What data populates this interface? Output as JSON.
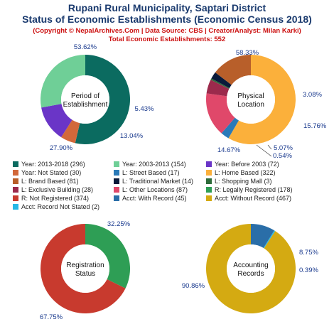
{
  "header": {
    "title1": "Rupani Rural Municipality, Saptari District",
    "title2": "Status of Economic Establishments (Economic Census 2018)",
    "credit": "(Copyright © NepalArchives.Com | Data Source: CBS | Creator/Analyst: Milan Karki)",
    "total": "Total Economic Establishments: 552"
  },
  "chart_data": [
    {
      "type": "pie",
      "center_label": [
        "Period of",
        "Establishment"
      ],
      "slices": [
        {
          "label": "Year: 2013-2018",
          "value": 296,
          "color": "#0b6b60",
          "pct_label": "53.62%"
        },
        {
          "label": "Year: Not Stated",
          "value": 30,
          "color": "#d2683a",
          "pct_label": "5.43%"
        },
        {
          "label": "Year: Before 2003",
          "value": 72,
          "color": "#6a35c7",
          "pct_label": "13.04%"
        },
        {
          "label": "Year: 2003-2013",
          "value": 154,
          "color": "#6fcf97",
          "pct_label": "27.90%"
        }
      ]
    },
    {
      "type": "pie",
      "center_label": [
        "Physical",
        "Location"
      ],
      "slices": [
        {
          "label": "L: Home Based",
          "value": 322,
          "color": "#fbb03b",
          "pct_label": "58.33%"
        },
        {
          "label": "L: Street Based",
          "value": 17,
          "color": "#2a7ab8",
          "pct_label": "3.08%"
        },
        {
          "label": "L: Other Locations",
          "value": 87,
          "color": "#e0486a",
          "pct_label": "15.76%"
        },
        {
          "label": "L: Exclusive Building",
          "value": 28,
          "color": "#9c2a4c",
          "pct_label": "5.07%"
        },
        {
          "label": "L: Shopping Mall",
          "value": 3,
          "color": "#2e6b3a",
          "pct_label": "0.54%"
        },
        {
          "label": "L: Traditional Market",
          "value": 14,
          "color": "#0a1a3a",
          "pct_label": ""
        },
        {
          "label": "L: Brand Based",
          "value": 81,
          "color": "#b85f2a",
          "pct_label": "14.67%"
        }
      ]
    },
    {
      "type": "pie",
      "center_label": [
        "Registration",
        "Status"
      ],
      "slices": [
        {
          "label": "R: Legally Registered",
          "value": 178,
          "color": "#2e9e55",
          "pct_label": "32.25%"
        },
        {
          "label": "R: Not Registered",
          "value": 374,
          "color": "#c83a2e",
          "pct_label": "67.75%"
        }
      ]
    },
    {
      "type": "pie",
      "center_label": [
        "Accounting",
        "Records"
      ],
      "slices": [
        {
          "label": "Acct: With Record",
          "value": 45,
          "color": "#2a6ea8",
          "pct_label": "8.75%"
        },
        {
          "label": "Acct: Record Not Stated",
          "value": 2,
          "color": "#26b8e6",
          "pct_label": "0.39%"
        },
        {
          "label": "Acct: Without Record",
          "value": 467,
          "color": "#d4aa12",
          "pct_label": "90.86%"
        }
      ]
    }
  ],
  "legend": [
    {
      "text": "Year: 2013-2018 (296)",
      "color": "#0b6b60"
    },
    {
      "text": "Year: 2003-2013 (154)",
      "color": "#6fcf97"
    },
    {
      "text": "Year: Before 2003 (72)",
      "color": "#6a35c7"
    },
    {
      "text": "Year: Not Stated (30)",
      "color": "#d2683a"
    },
    {
      "text": "L: Street Based (17)",
      "color": "#2a7ab8"
    },
    {
      "text": "L: Home Based (322)",
      "color": "#fbb03b"
    },
    {
      "text": "L: Brand Based (81)",
      "color": "#b85f2a"
    },
    {
      "text": "L: Traditional Market (14)",
      "color": "#0a1a3a"
    },
    {
      "text": "L: Shopping Mall (3)",
      "color": "#2e6b3a"
    },
    {
      "text": "L: Exclusive Building (28)",
      "color": "#9c2a4c"
    },
    {
      "text": "L: Other Locations (87)",
      "color": "#e0486a"
    },
    {
      "text": "R: Legally Registered (178)",
      "color": "#2e9e55"
    },
    {
      "text": "R: Not Registered (374)",
      "color": "#c83a2e"
    },
    {
      "text": "Acct: With Record (45)",
      "color": "#2a6ea8"
    },
    {
      "text": "Acct: Without Record (467)",
      "color": "#d4aa12"
    },
    {
      "text": "Acct: Record Not Stated (2)",
      "color": "#26b8e6"
    }
  ]
}
